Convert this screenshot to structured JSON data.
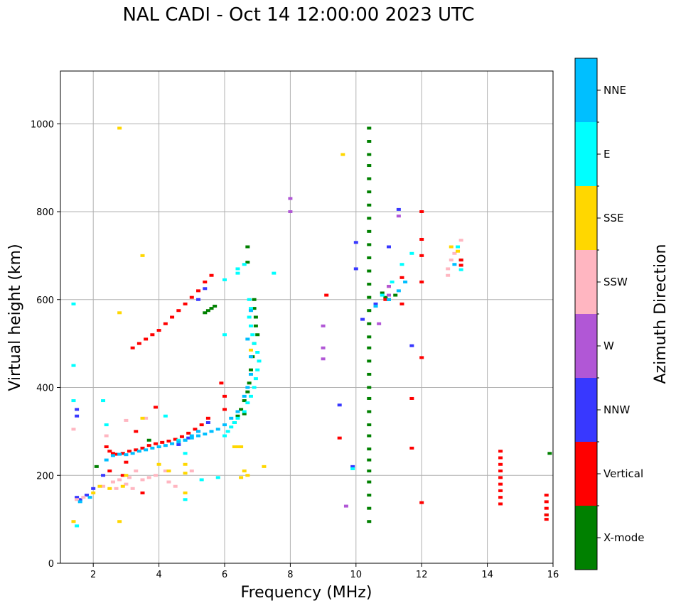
{
  "chart_data": {
    "type": "scatter",
    "title": "NAL CADI - Oct 14 12:00:00 2023 UTC",
    "xlabel": "Frequency (MHz)",
    "ylabel": "Virtual height (km)",
    "xlim": [
      1,
      16
    ],
    "ylim": [
      0,
      1120
    ],
    "xticks": [
      2,
      4,
      6,
      8,
      10,
      12,
      14,
      16
    ],
    "yticks": [
      0,
      200,
      400,
      600,
      800,
      1000
    ],
    "grid": true,
    "colorbar": {
      "title": "Azimuth Direction",
      "categories": [
        "X-mode",
        "Vertical",
        "NNW",
        "W",
        "SSW",
        "SSE",
        "E",
        "NNE"
      ],
      "colors": [
        "#008000",
        "#ff0000",
        "#3838ff",
        "#b157d6",
        "#ffb6c1",
        "#ffd700",
        "#00ffff",
        "#00bfff"
      ]
    },
    "series": [
      {
        "name": "X-mode",
        "points": [
          [
            10.4,
            990
          ],
          [
            10.4,
            960
          ],
          [
            10.4,
            930
          ],
          [
            10.4,
            905
          ],
          [
            10.4,
            875
          ],
          [
            10.4,
            845
          ],
          [
            10.4,
            815
          ],
          [
            10.4,
            785
          ],
          [
            10.4,
            755
          ],
          [
            10.4,
            725
          ],
          [
            10.4,
            695
          ],
          [
            10.4,
            665
          ],
          [
            10.4,
            635
          ],
          [
            10.4,
            605
          ],
          [
            10.4,
            575
          ],
          [
            10.4,
            545
          ],
          [
            10.4,
            515
          ],
          [
            10.4,
            490
          ],
          [
            10.4,
            460
          ],
          [
            10.4,
            430
          ],
          [
            10.4,
            400
          ],
          [
            10.4,
            375
          ],
          [
            10.4,
            345
          ],
          [
            10.4,
            315
          ],
          [
            10.4,
            290
          ],
          [
            10.4,
            260
          ],
          [
            10.4,
            235
          ],
          [
            10.4,
            210
          ],
          [
            10.4,
            185
          ],
          [
            10.4,
            155
          ],
          [
            10.4,
            125
          ],
          [
            10.4,
            95
          ],
          [
            5.4,
            570
          ],
          [
            5.5,
            575
          ],
          [
            5.6,
            580
          ],
          [
            5.7,
            585
          ],
          [
            6.9,
            600
          ],
          [
            6.9,
            580
          ],
          [
            6.95,
            560
          ],
          [
            6.95,
            540
          ],
          [
            7.0,
            520
          ],
          [
            6.9,
            500
          ],
          [
            6.85,
            470
          ],
          [
            6.8,
            440
          ],
          [
            6.75,
            410
          ],
          [
            6.7,
            390
          ],
          [
            6.6,
            370
          ],
          [
            6.5,
            350
          ],
          [
            6.4,
            335
          ],
          [
            6.3,
            320
          ],
          [
            6.6,
            340
          ],
          [
            6.7,
            720
          ],
          [
            6.7,
            685
          ],
          [
            10.8,
            615
          ],
          [
            10.9,
            605
          ],
          [
            11.0,
            600
          ],
          [
            11.2,
            610
          ],
          [
            13.2,
            690
          ],
          [
            15.9,
            250
          ],
          [
            15.8,
            110
          ],
          [
            2.1,
            220
          ],
          [
            3.7,
            280
          ]
        ]
      },
      {
        "name": "Vertical",
        "points": [
          [
            2.4,
            265
          ],
          [
            2.5,
            255
          ],
          [
            2.6,
            250
          ],
          [
            2.7,
            248
          ],
          [
            2.9,
            250
          ],
          [
            3.1,
            255
          ],
          [
            3.3,
            258
          ],
          [
            3.5,
            262
          ],
          [
            3.7,
            268
          ],
          [
            3.9,
            272
          ],
          [
            4.1,
            275
          ],
          [
            4.3,
            278
          ],
          [
            4.5,
            282
          ],
          [
            4.7,
            288
          ],
          [
            4.9,
            296
          ],
          [
            5.1,
            305
          ],
          [
            5.3,
            315
          ],
          [
            5.5,
            330
          ],
          [
            3.2,
            490
          ],
          [
            3.4,
            500
          ],
          [
            3.6,
            510
          ],
          [
            3.8,
            520
          ],
          [
            4.0,
            530
          ],
          [
            4.2,
            545
          ],
          [
            4.4,
            560
          ],
          [
            4.6,
            575
          ],
          [
            4.8,
            590
          ],
          [
            5.0,
            605
          ],
          [
            5.2,
            620
          ],
          [
            5.4,
            640
          ],
          [
            5.6,
            655
          ],
          [
            5.9,
            410
          ],
          [
            6.0,
            380
          ],
          [
            6.0,
            350
          ],
          [
            3.9,
            355
          ],
          [
            3.3,
            300
          ],
          [
            3.0,
            230
          ],
          [
            2.9,
            200
          ],
          [
            3.5,
            160
          ],
          [
            2.5,
            210
          ],
          [
            9.1,
            610
          ],
          [
            9.5,
            285
          ],
          [
            10.9,
            600
          ],
          [
            11.0,
            630
          ],
          [
            11.4,
            650
          ],
          [
            11.4,
            590
          ],
          [
            11.7,
            375
          ],
          [
            11.7,
            262
          ],
          [
            12.0,
            800
          ],
          [
            12.0,
            737
          ],
          [
            12.0,
            700
          ],
          [
            12.0,
            640
          ],
          [
            12.0,
            468
          ],
          [
            12.0,
            138
          ],
          [
            13.2,
            678
          ],
          [
            13.2,
            690
          ],
          [
            14.4,
            255
          ],
          [
            14.4,
            240
          ],
          [
            14.4,
            225
          ],
          [
            14.4,
            210
          ],
          [
            14.4,
            195
          ],
          [
            14.4,
            180
          ],
          [
            14.4,
            165
          ],
          [
            14.4,
            150
          ],
          [
            14.4,
            135
          ],
          [
            15.8,
            155
          ],
          [
            15.8,
            140
          ],
          [
            15.8,
            125
          ],
          [
            15.8,
            110
          ],
          [
            15.8,
            100
          ]
        ]
      },
      {
        "name": "NNW",
        "points": [
          [
            1.5,
            150
          ],
          [
            1.6,
            145
          ],
          [
            1.8,
            155
          ],
          [
            2.0,
            170
          ],
          [
            2.3,
            200
          ],
          [
            4.6,
            270
          ],
          [
            4.9,
            285
          ],
          [
            5.2,
            300
          ],
          [
            5.5,
            320
          ],
          [
            5.2,
            600
          ],
          [
            5.4,
            625
          ],
          [
            10.0,
            730
          ],
          [
            10.0,
            670
          ],
          [
            10.2,
            555
          ],
          [
            10.6,
            590
          ],
          [
            10.6,
            585
          ],
          [
            11.0,
            720
          ],
          [
            11.3,
            805
          ],
          [
            9.9,
            220
          ],
          [
            9.5,
            360
          ],
          [
            11.7,
            495
          ],
          [
            1.5,
            350
          ],
          [
            1.5,
            335
          ]
        ]
      },
      {
        "name": "W",
        "points": [
          [
            8.0,
            830
          ],
          [
            8.0,
            800
          ],
          [
            9.0,
            540
          ],
          [
            9.0,
            490
          ],
          [
            9.0,
            465
          ],
          [
            10.7,
            545
          ],
          [
            11.0,
            630
          ],
          [
            11.3,
            790
          ],
          [
            9.7,
            130
          ],
          [
            11.0,
            610
          ]
        ]
      },
      {
        "name": "SSW",
        "points": [
          [
            1.4,
            305
          ],
          [
            1.5,
            145
          ],
          [
            1.7,
            150
          ],
          [
            2.3,
            175
          ],
          [
            2.6,
            185
          ],
          [
            2.8,
            190
          ],
          [
            3.0,
            180
          ],
          [
            3.1,
            195
          ],
          [
            3.3,
            210
          ],
          [
            3.5,
            190
          ],
          [
            3.7,
            195
          ],
          [
            3.9,
            200
          ],
          [
            4.2,
            210
          ],
          [
            4.3,
            185
          ],
          [
            4.5,
            175
          ],
          [
            5.0,
            210
          ],
          [
            3.6,
            330
          ],
          [
            12.8,
            655
          ],
          [
            12.8,
            670
          ],
          [
            12.9,
            690
          ],
          [
            13.0,
            705
          ],
          [
            13.2,
            735
          ],
          [
            2.7,
            170
          ],
          [
            3.2,
            170
          ],
          [
            2.4,
            290
          ],
          [
            3.0,
            325
          ]
        ]
      },
      {
        "name": "SSE",
        "points": [
          [
            1.4,
            95
          ],
          [
            2.0,
            160
          ],
          [
            2.2,
            175
          ],
          [
            2.5,
            170
          ],
          [
            2.9,
            175
          ],
          [
            3.0,
            200
          ],
          [
            3.5,
            330
          ],
          [
            4.0,
            225
          ],
          [
            4.3,
            210
          ],
          [
            4.8,
            225
          ],
          [
            4.8,
            205
          ],
          [
            4.8,
            160
          ],
          [
            6.3,
            265
          ],
          [
            6.4,
            265
          ],
          [
            6.5,
            265
          ],
          [
            6.5,
            195
          ],
          [
            6.7,
            200
          ],
          [
            6.6,
            210
          ],
          [
            6.8,
            485
          ],
          [
            7.2,
            220
          ],
          [
            2.8,
            990
          ],
          [
            2.8,
            570
          ],
          [
            9.6,
            930
          ],
          [
            12.9,
            720
          ],
          [
            13.1,
            710
          ],
          [
            3.5,
            700
          ],
          [
            2.8,
            95
          ]
        ]
      },
      {
        "name": "E",
        "points": [
          [
            1.4,
            590
          ],
          [
            1.4,
            450
          ],
          [
            1.4,
            370
          ],
          [
            1.5,
            85
          ],
          [
            2.3,
            370
          ],
          [
            2.4,
            315
          ],
          [
            4.8,
            250
          ],
          [
            4.8,
            145
          ],
          [
            5.3,
            190
          ],
          [
            5.8,
            195
          ],
          [
            6.0,
            290
          ],
          [
            6.1,
            300
          ],
          [
            6.2,
            310
          ],
          [
            6.3,
            320
          ],
          [
            6.4,
            330
          ],
          [
            6.6,
            345
          ],
          [
            6.7,
            365
          ],
          [
            6.8,
            380
          ],
          [
            6.9,
            400
          ],
          [
            6.95,
            420
          ],
          [
            7.0,
            440
          ],
          [
            7.05,
            460
          ],
          [
            7.0,
            480
          ],
          [
            6.9,
            500
          ],
          [
            6.85,
            520
          ],
          [
            6.8,
            540
          ],
          [
            6.75,
            560
          ],
          [
            6.8,
            580
          ],
          [
            6.75,
            600
          ],
          [
            6.4,
            660
          ],
          [
            6.4,
            670
          ],
          [
            6.6,
            680
          ],
          [
            6.0,
            645
          ],
          [
            6.0,
            520
          ],
          [
            7.5,
            660
          ],
          [
            10.8,
            610
          ],
          [
            11.1,
            640
          ],
          [
            11.4,
            680
          ],
          [
            11.7,
            705
          ],
          [
            13.1,
            720
          ],
          [
            13.2,
            668
          ],
          [
            9.9,
            215
          ],
          [
            4.2,
            335
          ],
          [
            4.6,
            280
          ]
        ]
      },
      {
        "name": "NNE",
        "points": [
          [
            1.6,
            140
          ],
          [
            1.9,
            150
          ],
          [
            2.4,
            235
          ],
          [
            2.6,
            245
          ],
          [
            2.8,
            248
          ],
          [
            3.0,
            247
          ],
          [
            3.2,
            250
          ],
          [
            3.4,
            255
          ],
          [
            3.6,
            258
          ],
          [
            3.8,
            262
          ],
          [
            4.0,
            265
          ],
          [
            4.2,
            268
          ],
          [
            4.4,
            272
          ],
          [
            4.6,
            276
          ],
          [
            4.8,
            280
          ],
          [
            5.0,
            285
          ],
          [
            5.2,
            290
          ],
          [
            5.4,
            294
          ],
          [
            5.6,
            300
          ],
          [
            5.8,
            305
          ],
          [
            6.0,
            315
          ],
          [
            6.2,
            330
          ],
          [
            6.4,
            345
          ],
          [
            6.6,
            380
          ],
          [
            6.7,
            400
          ],
          [
            6.8,
            430
          ],
          [
            6.8,
            470
          ],
          [
            6.7,
            510
          ],
          [
            6.8,
            575
          ],
          [
            4.8,
            280
          ],
          [
            5.0,
            290
          ],
          [
            5.2,
            300
          ],
          [
            10.6,
            585
          ],
          [
            11.0,
            600
          ],
          [
            11.3,
            620
          ],
          [
            11.5,
            640
          ],
          [
            13.0,
            680
          ]
        ]
      }
    ]
  }
}
